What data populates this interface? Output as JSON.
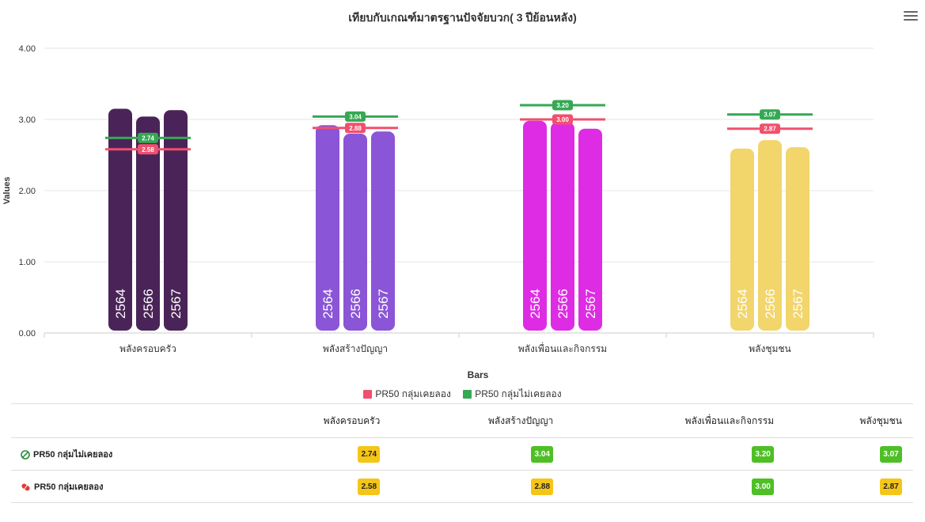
{
  "menu": {
    "icon": "hamburger-menu-icon"
  },
  "chart_data": {
    "type": "bar",
    "title": "เทียบกับเกณฑ์มาตรฐานปัจจัยบวก( 3 ปีย้อนหลัง)",
    "xlabel": "Bars",
    "ylabel": "Values",
    "ylim": [
      0,
      4
    ],
    "yticks": [
      "0.00",
      "1.00",
      "2.00",
      "3.00",
      "4.00"
    ],
    "grid": true,
    "legend_position": "bottom",
    "categories": [
      "พลังครอบครัว",
      "พลังสร้างปัญญา",
      "พลังเพื่อนและกิจกรรม",
      "พลังชุมชน"
    ],
    "bar_labels": [
      "2564",
      "2566",
      "2567"
    ],
    "series": [
      {
        "name": "2564",
        "values": [
          3.15,
          2.92,
          2.98,
          2.59
        ]
      },
      {
        "name": "2566",
        "values": [
          3.04,
          2.8,
          2.96,
          2.71
        ]
      },
      {
        "name": "2567",
        "values": [
          3.13,
          2.83,
          2.87,
          2.61
        ]
      }
    ],
    "category_colors": [
      "#4a2458",
      "#8a55d6",
      "#dd2ce3",
      "#f2d56b"
    ],
    "reference_lines": [
      {
        "name": "PR50 กลุ่มเคยลอง",
        "color": "#f0506e",
        "values": [
          2.58,
          2.88,
          3.0,
          2.87
        ],
        "labels": [
          "2.58",
          "2.88",
          "3.00",
          "2.87"
        ]
      },
      {
        "name": "PR50 กลุ่มไม่เคยลอง",
        "color": "#35a853",
        "values": [
          2.74,
          3.04,
          3.2,
          3.07
        ],
        "labels": [
          "2.74",
          "3.04",
          "3.20",
          "3.07"
        ]
      }
    ]
  },
  "table": {
    "headers": [
      "",
      "พลังครอบครัว",
      "พลังสร้างปัญญา",
      "พลังเพื่อนและกิจกรรม",
      "พลังชุมชน"
    ],
    "rows": [
      {
        "label": "PR50 กลุ่มไม่เคยลอง",
        "icon": "no-entry-circle-icon",
        "cells": [
          {
            "value": "2.74",
            "color": "yellow"
          },
          {
            "value": "3.04",
            "color": "green"
          },
          {
            "value": "3.20",
            "color": "green"
          },
          {
            "value": "3.07",
            "color": "green"
          }
        ]
      },
      {
        "label": "PR50 กลุ่มเคยลอง",
        "icon": "pill-icon",
        "cells": [
          {
            "value": "2.58",
            "color": "yellow"
          },
          {
            "value": "2.88",
            "color": "yellow"
          },
          {
            "value": "3.00",
            "color": "green"
          },
          {
            "value": "2.87",
            "color": "yellow"
          }
        ]
      }
    ]
  }
}
